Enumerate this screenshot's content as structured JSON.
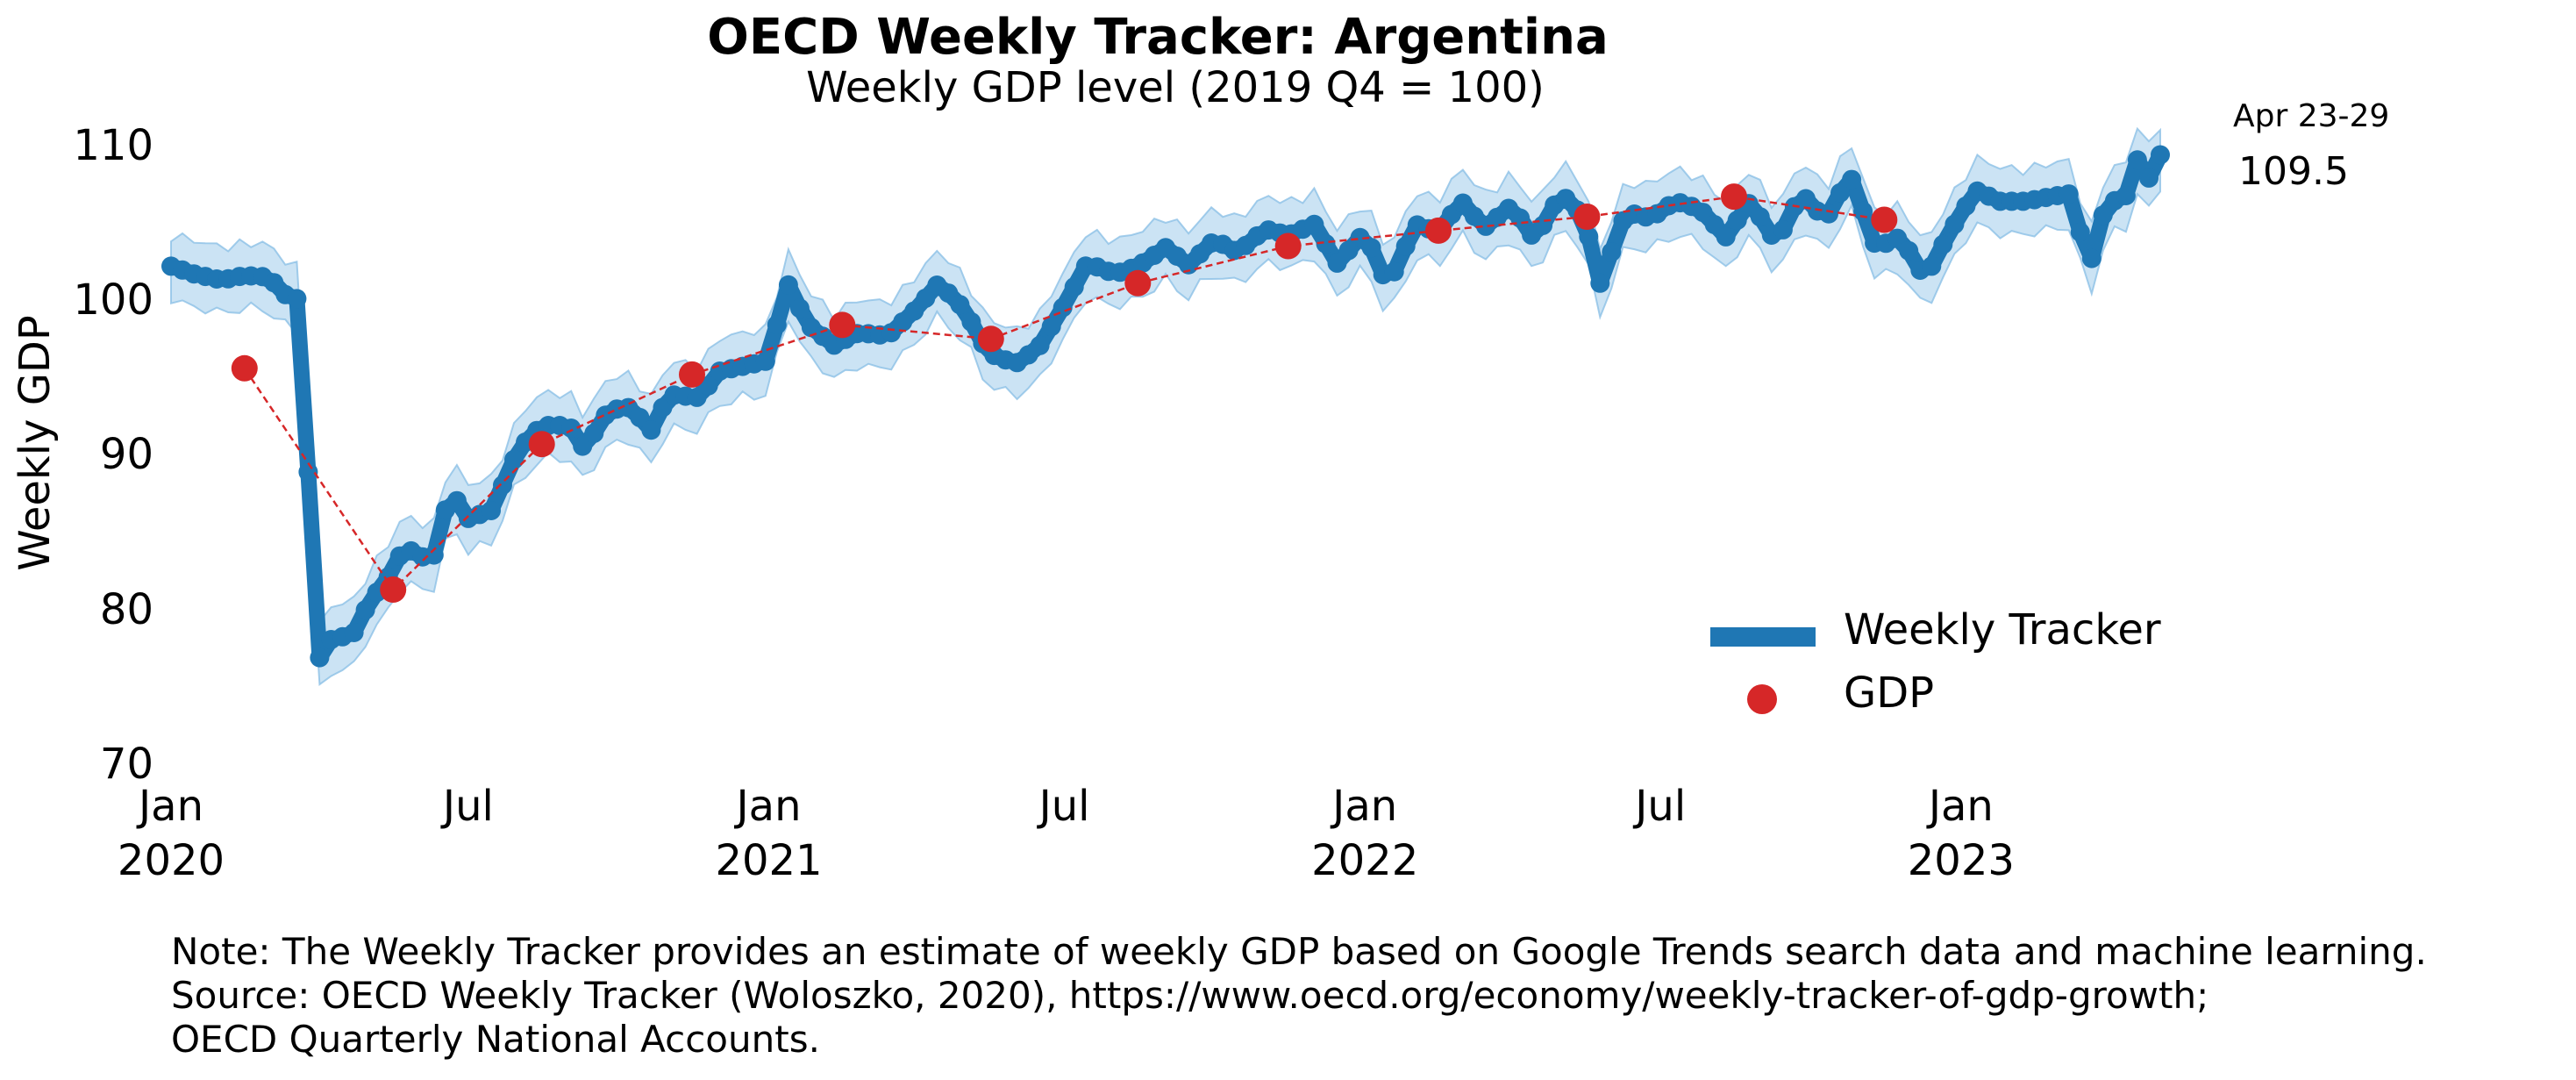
{
  "chart_data": {
    "type": "line",
    "title": "OECD Weekly Tracker: Argentina",
    "subtitle": "Weekly GDP level (2019 Q4 = 100)",
    "ylabel": "Weekly GDP",
    "xlabel": "",
    "ylim": [
      70,
      111
    ],
    "yticks": [
      70,
      80,
      90,
      100,
      110
    ],
    "xlim": [
      "2020-01-01",
      "2023-05-03"
    ],
    "xticks": [
      {
        "date": "2020-01-01",
        "label": "Jan\n2020"
      },
      {
        "date": "2020-07-01",
        "label": "Jul"
      },
      {
        "date": "2021-01-01",
        "label": "Jan\n2021"
      },
      {
        "date": "2021-07-01",
        "label": "Jul"
      },
      {
        "date": "2022-01-01",
        "label": "Jan\n2022"
      },
      {
        "date": "2022-07-01",
        "label": "Jul"
      },
      {
        "date": "2023-01-01",
        "label": "Jan\n2023"
      }
    ],
    "grid": false,
    "legend_position": "bottom-right",
    "last_point_label": "Apr 23-29",
    "last_point_value": "109.5",
    "series": [
      {
        "name": "Weekly Tracker",
        "color": "#1f77b4",
        "band_color": "#a8d0ec",
        "anchors": [
          [
            "2020-01-01",
            102.3
          ],
          [
            "2020-01-15",
            101.8
          ],
          [
            "2020-02-01",
            101.4
          ],
          [
            "2020-02-15",
            101.7
          ],
          [
            "2020-03-01",
            101.6
          ],
          [
            "2020-03-10",
            100.5
          ],
          [
            "2020-03-18",
            100.2
          ],
          [
            "2020-03-25",
            89.0
          ],
          [
            "2020-04-01",
            77.0
          ],
          [
            "2020-04-10",
            78.5
          ],
          [
            "2020-04-20",
            78.2
          ],
          [
            "2020-05-01",
            80.5
          ],
          [
            "2020-05-15",
            82.5
          ],
          [
            "2020-05-22",
            84.0
          ],
          [
            "2020-06-01",
            83.8
          ],
          [
            "2020-06-08",
            82.8
          ],
          [
            "2020-06-20",
            87.8
          ],
          [
            "2020-07-01",
            86.0
          ],
          [
            "2020-07-15",
            86.5
          ],
          [
            "2020-08-01",
            90.5
          ],
          [
            "2020-08-15",
            92.0
          ],
          [
            "2020-09-01",
            92.0
          ],
          [
            "2020-09-10",
            90.5
          ],
          [
            "2020-09-25",
            93.0
          ],
          [
            "2020-10-10",
            93.2
          ],
          [
            "2020-10-20",
            91.5
          ],
          [
            "2020-11-01",
            94.0
          ],
          [
            "2020-11-20",
            93.8
          ],
          [
            "2020-12-01",
            95.5
          ],
          [
            "2020-12-15",
            95.8
          ],
          [
            "2021-01-01",
            96.2
          ],
          [
            "2021-01-12",
            101.3
          ],
          [
            "2021-01-25",
            98.5
          ],
          [
            "2021-02-10",
            97.2
          ],
          [
            "2021-02-25",
            98.0
          ],
          [
            "2021-03-15",
            97.8
          ],
          [
            "2021-04-01",
            99.5
          ],
          [
            "2021-04-15",
            101.2
          ],
          [
            "2021-05-01",
            99.5
          ],
          [
            "2021-05-15",
            96.7
          ],
          [
            "2021-06-01",
            96.0
          ],
          [
            "2021-06-15",
            97.0
          ],
          [
            "2021-07-01",
            99.8
          ],
          [
            "2021-07-15",
            102.5
          ],
          [
            "2021-08-01",
            101.8
          ],
          [
            "2021-08-15",
            102.3
          ],
          [
            "2021-09-01",
            103.5
          ],
          [
            "2021-09-15",
            102.4
          ],
          [
            "2021-10-01",
            104.0
          ],
          [
            "2021-10-15",
            103.2
          ],
          [
            "2021-11-01",
            104.7
          ],
          [
            "2021-11-15",
            104.3
          ],
          [
            "2021-12-01",
            105.0
          ],
          [
            "2021-12-15",
            102.5
          ],
          [
            "2022-01-01",
            104.5
          ],
          [
            "2022-01-15",
            101.0
          ],
          [
            "2022-02-01",
            105.0
          ],
          [
            "2022-02-15",
            104.5
          ],
          [
            "2022-03-01",
            106.5
          ],
          [
            "2022-03-15",
            104.8
          ],
          [
            "2022-04-01",
            106.2
          ],
          [
            "2022-04-15",
            104.0
          ],
          [
            "2022-05-01",
            107.0
          ],
          [
            "2022-05-15",
            105.5
          ],
          [
            "2022-05-25",
            101.2
          ],
          [
            "2022-06-10",
            105.8
          ],
          [
            "2022-06-25",
            105.4
          ],
          [
            "2022-07-10",
            106.5
          ],
          [
            "2022-07-25",
            106.0
          ],
          [
            "2022-08-10",
            104.2
          ],
          [
            "2022-08-25",
            106.5
          ],
          [
            "2022-09-10",
            103.8
          ],
          [
            "2022-09-25",
            107.0
          ],
          [
            "2022-10-10",
            105.3
          ],
          [
            "2022-10-25",
            108.2
          ],
          [
            "2022-11-10",
            103.5
          ],
          [
            "2022-11-25",
            104.2
          ],
          [
            "2022-12-10",
            101.5
          ],
          [
            "2022-12-25",
            104.5
          ],
          [
            "2023-01-10",
            107.2
          ],
          [
            "2023-01-25",
            106.5
          ],
          [
            "2023-02-10",
            106.5
          ],
          [
            "2023-02-25",
            106.8
          ],
          [
            "2023-03-10",
            107.0
          ],
          [
            "2023-03-20",
            102.0
          ],
          [
            "2023-04-01",
            106.8
          ],
          [
            "2023-04-10",
            106.2
          ],
          [
            "2023-04-20",
            109.5
          ],
          [
            "2023-04-26",
            108.0
          ],
          [
            "2023-05-03",
            109.5
          ]
        ]
      },
      {
        "name": "GDP",
        "color": "#d62728",
        "points": [
          [
            "2020-02-15",
            95.7
          ],
          [
            "2020-05-16",
            81.4
          ],
          [
            "2020-08-15",
            90.8
          ],
          [
            "2020-11-15",
            95.3
          ],
          [
            "2021-02-15",
            98.5
          ],
          [
            "2021-05-17",
            97.6
          ],
          [
            "2021-08-15",
            101.2
          ],
          [
            "2021-11-15",
            103.6
          ],
          [
            "2022-02-15",
            104.6
          ],
          [
            "2022-05-17",
            105.5
          ],
          [
            "2022-08-15",
            106.8
          ],
          [
            "2022-11-15",
            105.3
          ]
        ]
      }
    ]
  },
  "note": {
    "line1": "Note: The Weekly Tracker provides an estimate of weekly GDP based on Google Trends search data and machine learning.",
    "line2": "Source: OECD Weekly Tracker (Woloszko, 2020), https://www.oecd.org/economy/weekly-tracker-of-gdp-growth;",
    "line3": "OECD Quarterly National Accounts."
  },
  "legend": {
    "tracker_label": "Weekly Tracker",
    "gdp_label": "GDP"
  }
}
